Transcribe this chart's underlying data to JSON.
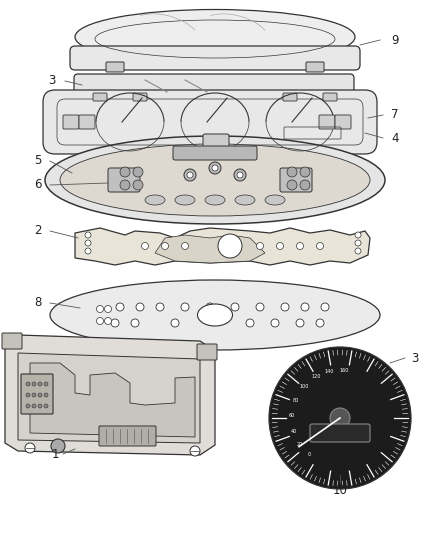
{
  "background_color": "#ffffff",
  "line_color": "#333333",
  "label_color": "#222222",
  "lw": 0.9,
  "figsize": [
    4.38,
    5.33
  ],
  "dpi": 100
}
